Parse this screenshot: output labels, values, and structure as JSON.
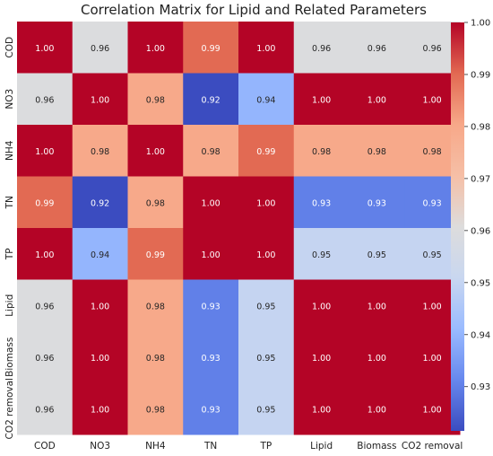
{
  "chart_data": {
    "type": "heatmap",
    "title": "Correlation Matrix for Lipid and Related Parameters",
    "x_labels": [
      "COD",
      "NO3",
      "NH4",
      "TN",
      "TP",
      "Lipid",
      "Biomass",
      "CO2 removal"
    ],
    "y_labels": [
      "COD",
      "NO3",
      "NH4",
      "TN",
      "TP",
      "Lipid",
      "Biomass",
      "CO2 removal"
    ],
    "values": [
      [
        1.0,
        0.96,
        1.0,
        0.99,
        1.0,
        0.96,
        0.96,
        0.96
      ],
      [
        0.96,
        1.0,
        0.98,
        0.92,
        0.94,
        1.0,
        1.0,
        1.0
      ],
      [
        1.0,
        0.98,
        1.0,
        0.98,
        0.99,
        0.98,
        0.98,
        0.98
      ],
      [
        0.99,
        0.92,
        0.98,
        1.0,
        1.0,
        0.93,
        0.93,
        0.93
      ],
      [
        1.0,
        0.94,
        0.99,
        1.0,
        1.0,
        0.95,
        0.95,
        0.95
      ],
      [
        0.96,
        1.0,
        0.98,
        0.93,
        0.95,
        1.0,
        1.0,
        1.0
      ],
      [
        0.96,
        1.0,
        0.98,
        0.93,
        0.95,
        1.0,
        1.0,
        1.0
      ],
      [
        0.96,
        1.0,
        0.98,
        0.93,
        0.95,
        1.0,
        1.0,
        1.0
      ]
    ],
    "value_format": "0.00",
    "colormap": "coolwarm",
    "colormap_stops": [
      "#3b4cc0",
      "#6788ee",
      "#9abbff",
      "#c9d7f0",
      "#dddcdc",
      "#f6bfa6",
      "#f7a889",
      "#e26952",
      "#b40426"
    ],
    "color_range": [
      0.9215,
      1.0
    ],
    "colorbar_ticks": [
      "1.00",
      "0.99",
      "0.98",
      "0.97",
      "0.96",
      "0.95",
      "0.94",
      "0.93"
    ],
    "grid": false
  }
}
